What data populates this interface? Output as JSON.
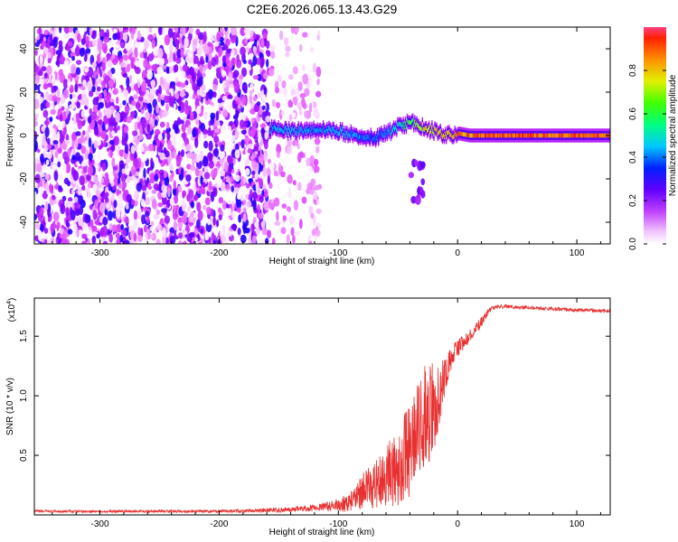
{
  "chart_data": [
    {
      "type": "heatmap",
      "title": "C2E6.2026.065.13.43.G29",
      "xlabel": "Height of straight line (km)",
      "ylabel": "Frequency (Hz)",
      "xlim": [
        -355,
        128
      ],
      "ylim": [
        -50,
        50
      ],
      "xticks": [
        -300,
        -200,
        -100,
        0,
        100
      ],
      "yticks": [
        -40,
        -20,
        0,
        20,
        40
      ],
      "colorbar": {
        "label": "Normalized spectral amplitude",
        "range": [
          0.0,
          1.0
        ],
        "ticks": [
          0.0,
          0.2,
          0.4,
          0.6,
          0.8
        ],
        "tick_labels": [
          "0.0",
          "0.2",
          "0.4",
          "0.6",
          "0.8"
        ],
        "colors": [
          "#ffffff",
          "#e040ff",
          "#8000ff",
          "#0000ff",
          "#00c8ff",
          "#00ff60",
          "#c8ff00",
          "#ffa000",
          "#ff0000"
        ]
      },
      "regions": [
        {
          "name": "scattered noise",
          "x_range": [
            -355,
            -158
          ],
          "freq_range": [
            -50,
            50
          ],
          "amplitude": "0.0-0.35"
        },
        {
          "name": "sparse noise",
          "x_range": [
            -158,
            -115
          ],
          "freq_range": [
            -50,
            50
          ],
          "amplitude": "0.0-0.15"
        },
        {
          "name": "tone track",
          "x_range": [
            -158,
            128
          ],
          "freq_center": 0,
          "amplitude": "0.4-1.0"
        },
        {
          "name": "spur",
          "x_range": [
            -42,
            -28
          ],
          "freq_range": [
            -30,
            -12
          ],
          "amplitude": "0.1-0.3"
        }
      ],
      "track": {
        "x": [
          -158,
          -140,
          -120,
          -100,
          -85,
          -70,
          -60,
          -50,
          -40,
          -30,
          -20,
          -10,
          0,
          10,
          20,
          40,
          60,
          80,
          100,
          128
        ],
        "freq": [
          3,
          2,
          3,
          2,
          0,
          -1,
          1,
          4,
          6,
          4,
          2,
          0,
          1,
          0,
          0,
          0,
          0,
          0,
          0,
          0
        ],
        "amplitude": [
          0.5,
          0.55,
          0.5,
          0.55,
          0.5,
          0.45,
          0.5,
          0.6,
          0.7,
          0.8,
          0.85,
          0.9,
          0.95,
          0.95,
          1.0,
          1.0,
          1.0,
          1.0,
          1.0,
          1.0
        ]
      }
    },
    {
      "type": "line",
      "xlabel": "Height of straight line (km)",
      "ylabel": "SNR (10 * v/v)",
      "multiplier_label": "(x10",
      "multiplier_exp": "4",
      "multiplier_close": ")",
      "xlim": [
        -355,
        128
      ],
      "ylim": [
        0,
        1.82
      ],
      "xticks": [
        -300,
        -200,
        -100,
        0,
        100
      ],
      "yticks": [
        0.5,
        1.0,
        1.5
      ],
      "ytick_labels": [
        "0.5",
        "1.0",
        "1.5"
      ],
      "series": [
        {
          "name": "SNR",
          "color": "#e83030",
          "x": [
            -355,
            -300,
            -250,
            -200,
            -170,
            -150,
            -120,
            -100,
            -90,
            -80,
            -70,
            -60,
            -50,
            -40,
            -35,
            -30,
            -25,
            -20,
            -15,
            -10,
            -5,
            0,
            5,
            10,
            15,
            20,
            25,
            30,
            35,
            40,
            60,
            80,
            100,
            128
          ],
          "mean": [
            0.03,
            0.03,
            0.03,
            0.03,
            0.035,
            0.04,
            0.06,
            0.08,
            0.12,
            0.2,
            0.25,
            0.32,
            0.42,
            0.55,
            0.65,
            0.75,
            0.85,
            0.9,
            1.0,
            1.2,
            1.32,
            1.4,
            1.45,
            1.5,
            1.56,
            1.62,
            1.7,
            1.74,
            1.75,
            1.75,
            1.74,
            1.73,
            1.72,
            1.71
          ],
          "spread": [
            0.01,
            0.01,
            0.01,
            0.012,
            0.015,
            0.02,
            0.03,
            0.05,
            0.1,
            0.15,
            0.2,
            0.25,
            0.35,
            0.4,
            0.4,
            0.45,
            0.45,
            0.4,
            0.25,
            0.15,
            0.1,
            0.08,
            0.06,
            0.05,
            0.05,
            0.04,
            0.03,
            0.02,
            0.02,
            0.015,
            0.015,
            0.015,
            0.015,
            0.015
          ]
        }
      ]
    }
  ]
}
